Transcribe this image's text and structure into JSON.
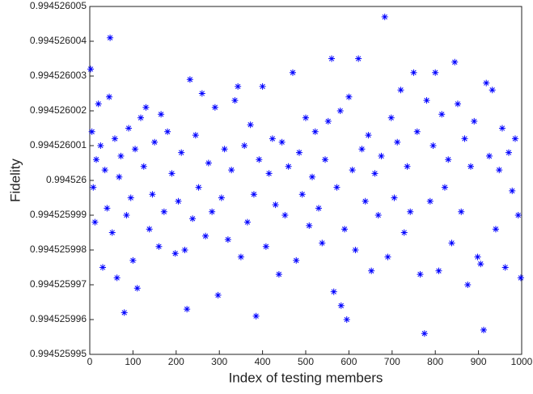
{
  "chart_data": {
    "type": "scatter",
    "xlabel": "Index of testing members",
    "ylabel": "Fidelity",
    "xlim": [
      0,
      1000
    ],
    "ylim": [
      0.994525995,
      0.994526005
    ],
    "xticks": [
      0,
      100,
      200,
      300,
      400,
      500,
      600,
      700,
      800,
      900,
      1000
    ],
    "yticks": [
      0.994525995,
      0.994525996,
      0.994525997,
      0.994525998,
      0.994525999,
      0.994526,
      0.994526001,
      0.994526002,
      0.994526003,
      0.994526004,
      0.994526005
    ],
    "grid": false,
    "series": [
      {
        "color": "#0000ff",
        "x": [
          2,
          5,
          8,
          12,
          15,
          20,
          25,
          30,
          35,
          40,
          45,
          47,
          52,
          58,
          63,
          68,
          72,
          80,
          85,
          90,
          95,
          100,
          105,
          110,
          118,
          125,
          130,
          138,
          145,
          150,
          160,
          165,
          172,
          180,
          190,
          198,
          205,
          212,
          220,
          225,
          232,
          238,
          245,
          252,
          260,
          268,
          275,
          283,
          290,
          297,
          305,
          312,
          320,
          328,
          336,
          343,
          350,
          358,
          365,
          372,
          380,
          385,
          392,
          400,
          408,
          415,
          423,
          430,
          438,
          445,
          452,
          460,
          470,
          478,
          485,
          492,
          500,
          508,
          515,
          522,
          530,
          538,
          545,
          552,
          560,
          565,
          572,
          580,
          582,
          590,
          595,
          600,
          608,
          615,
          622,
          630,
          638,
          645,
          652,
          660,
          668,
          675,
          683,
          690,
          698,
          705,
          712,
          720,
          728,
          735,
          742,
          750,
          758,
          765,
          775,
          780,
          788,
          795,
          800,
          808,
          815,
          822,
          830,
          838,
          845,
          852,
          860,
          868,
          875,
          882,
          890,
          898,
          905,
          912,
          918,
          925,
          932,
          940,
          948,
          955,
          962,
          970,
          978,
          985,
          992,
          998
        ],
        "values": [
          0.9945260032,
          0.9945260014,
          0.9945259998,
          0.9945259988,
          0.9945260006,
          0.9945260022,
          0.994526001,
          0.9945259975,
          0.9945260003,
          0.9945259992,
          0.9945260024,
          0.9945260041,
          0.9945259985,
          0.9945260012,
          0.9945259972,
          0.9945260001,
          0.9945260007,
          0.9945259962,
          0.994525999,
          0.9945260015,
          0.9945259995,
          0.9945259977,
          0.9945260009,
          0.9945259969,
          0.9945260018,
          0.9945260004,
          0.9945260021,
          0.9945259986,
          0.9945259996,
          0.9945260011,
          0.9945259981,
          0.9945260019,
          0.9945259991,
          0.9945260014,
          0.9945260002,
          0.9945259979,
          0.9945259994,
          0.9945260008,
          0.994525998,
          0.9945259963,
          0.9945260029,
          0.9945259989,
          0.9945260013,
          0.9945259998,
          0.9945260025,
          0.9945259984,
          0.9945260005,
          0.9945259991,
          0.9945260021,
          0.9945259967,
          0.9945259995,
          0.9945260009,
          0.9945259983,
          0.9945260003,
          0.9945260023,
          0.9945260027,
          0.9945259978,
          0.994526001,
          0.9945259988,
          0.9945260016,
          0.9945259996,
          0.9945259961,
          0.9945260006,
          0.9945260027,
          0.9945259981,
          0.9945260002,
          0.9945260012,
          0.9945259993,
          0.9945259973,
          0.9945260011,
          0.994525999,
          0.9945260004,
          0.9945260031,
          0.9945259977,
          0.9945260008,
          0.9945259996,
          0.9945260018,
          0.9945259987,
          0.9945260001,
          0.9945260014,
          0.9945259992,
          0.9945259982,
          0.9945260006,
          0.9945260017,
          0.9945260035,
          0.9945259968,
          0.9945259998,
          0.994526002,
          0.9945259964,
          0.9945259986,
          0.994525996,
          0.9945260024,
          0.9945260003,
          0.994525998,
          0.9945260035,
          0.9945260009,
          0.9945259994,
          0.9945260013,
          0.9945259974,
          0.9945260002,
          0.994525999,
          0.9945260007,
          0.9945260047,
          0.9945259978,
          0.9945260018,
          0.9945259995,
          0.9945260011,
          0.9945260026,
          0.9945259985,
          0.9945260004,
          0.9945259991,
          0.9945260031,
          0.9945260014,
          0.9945259973,
          0.9945259956,
          0.9945260023,
          0.9945259994,
          0.994526001,
          0.9945260031,
          0.9945259974,
          0.9945260019,
          0.9945259998,
          0.9945260006,
          0.9945259982,
          0.9945260034,
          0.9945260022,
          0.9945259991,
          0.9945260012,
          0.994525997,
          0.9945260004,
          0.9945260017,
          0.9945259978,
          0.9945259976,
          0.9945259957,
          0.9945260028,
          0.9945260007,
          0.9945260026,
          0.9945259986,
          0.9945260003,
          0.9945260015,
          0.9945259975,
          0.9945260008,
          0.9945259997,
          0.9945260012,
          0.994525999,
          0.9945259972
        ]
      }
    ]
  }
}
